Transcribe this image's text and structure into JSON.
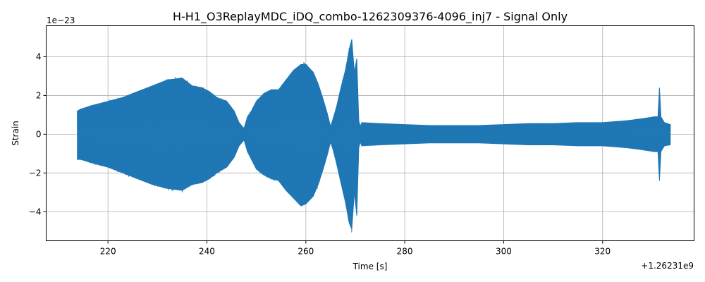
{
  "chart_data": {
    "type": "line",
    "title": "H-H1_O3ReplayMDC_iDQ_combo-1262309376-4096_inj7 - Signal Only",
    "xlabel": "Time [s]",
    "ylabel": "Strain",
    "x_offset_label": "+1.26231e9",
    "y_scale_label": "1e−23",
    "x_ticks": [
      220,
      240,
      260,
      280,
      300,
      320
    ],
    "x_tick_labels": [
      "220",
      "240",
      "260",
      "280",
      "300",
      "320"
    ],
    "y_ticks": [
      -4,
      -2,
      0,
      2,
      4
    ],
    "y_tick_labels": [
      "−4",
      "−2",
      "0",
      "2",
      "4"
    ],
    "xlim": [
      207.5,
      338.5
    ],
    "ylim": [
      -5.5,
      5.6
    ],
    "grid": true,
    "color": "#1f77b4",
    "series": [
      {
        "x_range": [
          213.8,
          333.7
        ],
        "envelope": {
          "time": [
            213.8,
            214.5,
            217,
            220,
            223,
            226,
            229,
            232,
            235,
            237,
            239,
            240.5,
            242,
            244,
            245.5,
            246.5,
            247.5,
            248.2,
            249,
            250,
            251.5,
            253,
            254.5,
            256,
            257.5,
            259,
            260,
            261.5,
            262.5,
            263.5,
            264.3,
            265,
            265.5,
            266.2,
            267,
            268,
            268.8,
            269.3,
            269.8,
            270.3,
            270.7,
            271,
            271.3,
            275,
            280,
            285,
            290,
            295,
            300,
            305,
            310,
            315,
            320,
            325,
            328,
            330.5,
            331.2,
            331.5,
            331.8,
            332.5,
            333.7
          ],
          "upper": [
            1.2,
            1.3,
            1.5,
            1.7,
            1.9,
            2.2,
            2.5,
            2.8,
            2.9,
            2.5,
            2.4,
            2.2,
            1.9,
            1.7,
            1.2,
            0.6,
            0.3,
            0.9,
            1.2,
            1.7,
            2.1,
            2.3,
            2.3,
            2.8,
            3.3,
            3.6,
            3.6,
            3.2,
            2.6,
            1.8,
            1.1,
            0.4,
            0.8,
            1.4,
            2.3,
            3.3,
            4.4,
            4.9,
            3.2,
            3.9,
            0.7,
            0.4,
            0.6,
            0.55,
            0.5,
            0.45,
            0.45,
            0.45,
            0.5,
            0.55,
            0.55,
            0.6,
            0.6,
            0.7,
            0.8,
            0.9,
            0.9,
            2.4,
            0.9,
            0.6,
            0.5
          ],
          "lower": [
            -1.3,
            -1.3,
            -1.5,
            -1.7,
            -2.0,
            -2.3,
            -2.6,
            -2.8,
            -2.9,
            -2.6,
            -2.5,
            -2.3,
            -2.0,
            -1.7,
            -1.2,
            -0.6,
            -0.3,
            -0.9,
            -1.3,
            -1.8,
            -2.1,
            -2.3,
            -2.4,
            -2.9,
            -3.3,
            -3.7,
            -3.6,
            -3.2,
            -2.6,
            -1.8,
            -1.1,
            -0.4,
            -0.8,
            -1.5,
            -2.4,
            -3.5,
            -4.6,
            -4.9,
            -3.0,
            -4.2,
            -0.7,
            -0.4,
            -0.6,
            -0.55,
            -0.5,
            -0.45,
            -0.45,
            -0.45,
            -0.5,
            -0.55,
            -0.55,
            -0.6,
            -0.6,
            -0.7,
            -0.8,
            -0.9,
            -0.9,
            -2.4,
            -0.9,
            -0.6,
            -0.55
          ]
        }
      }
    ]
  }
}
